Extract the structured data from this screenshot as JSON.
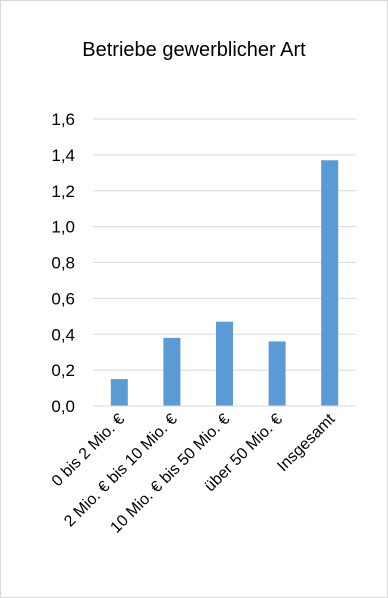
{
  "chart_data": {
    "type": "bar",
    "title": "Betriebe gewerblicher Art",
    "categories": [
      "0 bis 2 Mio. €",
      "2 Mio. € bis 10 Mio. €",
      "10 Mio. € bis 50 Mio. €",
      "über 50 Mio. €",
      "Insgesamt"
    ],
    "values": [
      0.15,
      0.38,
      0.47,
      0.36,
      1.37
    ],
    "yticks": [
      "0,0",
      "0,2",
      "0,4",
      "0,6",
      "0,8",
      "1,0",
      "1,2",
      "1,4",
      "1,6"
    ],
    "ylim": [
      0,
      1.6
    ],
    "grid": true,
    "legend": "none",
    "bar_color": "#5b9bd5",
    "grid_color": "#d9d9d9"
  }
}
